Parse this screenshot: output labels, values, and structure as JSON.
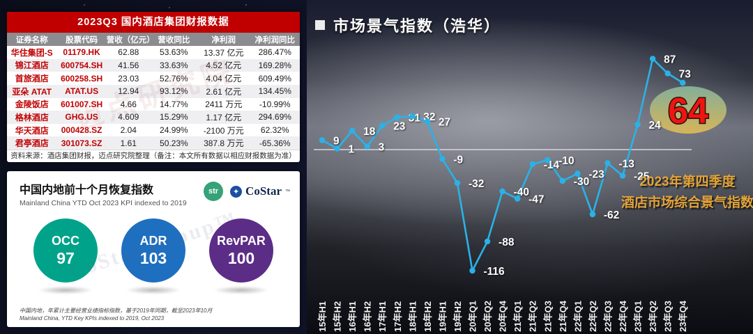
{
  "finance_table": {
    "title": "2023Q3 国内酒店集团财报数据",
    "title_bar_color": "#c00000",
    "header_bg_color": "#8b8b90",
    "name_text_color": "#c00000",
    "columns": [
      "证券名称",
      "股票代码",
      "营收（亿元）",
      "营收同比",
      "净利润",
      "净利润同比"
    ],
    "rows": [
      [
        "华住集团-S",
        "01179.HK",
        "62.88",
        "53.63%",
        "13.37 亿元",
        "286.47%"
      ],
      [
        "锦江酒店",
        "600754.SH",
        "41.56",
        "33.63%",
        "4.52 亿元",
        "169.28%"
      ],
      [
        "首旅酒店",
        "600258.SH",
        "23.03",
        "52.76%",
        "4.04 亿元",
        "609.49%"
      ],
      [
        "亚朵 ATAT",
        "ATAT.US",
        "12.94",
        "93.12%",
        "2.61 亿元",
        "134.45%"
      ],
      [
        "金陵饭店",
        "601007.SH",
        "4.66",
        "14.77%",
        "2411 万元",
        "-10.99%"
      ],
      [
        "格林酒店",
        "GHG.US",
        "4.609",
        "15.29%",
        "1.17 亿元",
        "294.69%"
      ],
      [
        "华天酒店",
        "000428.SZ",
        "2.04",
        "24.99%",
        "-2100 万元",
        "62.32%"
      ],
      [
        "君亭酒店",
        "301073.SZ",
        "1.61",
        "50.23%",
        "387.8 万元",
        "-65.36%"
      ]
    ],
    "source_note": "资料来源：酒店集团财报，迈点研究院整理（备注：本文所有数据以相应财报数据为准）",
    "watermark": "迈点研究院"
  },
  "recovery_panel": {
    "title": "中国内地前十个月恢复指数",
    "subtitle": "Mainland China YTD Oct 2023 KPI indexed to 2019",
    "logos": {
      "str": "str",
      "costar": "CoStar",
      "tm": "™"
    },
    "metrics": [
      {
        "label": "OCC",
        "value": "97",
        "color": "#00a38a"
      },
      {
        "label": "ADR",
        "value": "103",
        "color": "#1f6fc0"
      },
      {
        "label": "RevPAR",
        "value": "100",
        "color": "#5c2d87"
      }
    ],
    "footnote_cn": "中国内地，年累计主要经营业绩指标指数，基于2019年同期，截至2023年10月",
    "footnote_en": "Mainland China, YTD Key KPIs indexed to 2019, Oct 2023",
    "watermark": "CoStar Group™"
  },
  "chart_data": {
    "type": "line",
    "title": "市场景气指数（浩华）",
    "title_bullet": "■",
    "categories": [
      "15年H1",
      "15年H2",
      "16年H1",
      "16年H2",
      "17年H1",
      "17年H2",
      "18年H1",
      "18年H2",
      "19年H1",
      "19年H2",
      "20年Q1",
      "20年Q2",
      "20年Q4",
      "21年Q1",
      "21年Q2",
      "21年Q3",
      "21年Q4",
      "22年Q1",
      "22年Q2",
      "22年Q3",
      "22年Q4",
      "23年Q1",
      "23年Q2",
      "23年Q3",
      "23年Q4"
    ],
    "values": [
      9,
      1,
      18,
      3,
      23,
      31,
      32,
      27,
      -9,
      -32,
      -116,
      -88,
      -40,
      -47,
      -14,
      -10,
      -30,
      -23,
      -62,
      -13,
      -25,
      24,
      87,
      73,
      64
    ],
    "ylim": [
      -130,
      100
    ],
    "grid": "off",
    "legend": "none",
    "line_color": "#2ab2e8",
    "marker_color": "#2ab2e8",
    "label_color": "#ffffff",
    "zero_line_color": "#d6d8da",
    "highlight": {
      "category": "23年Q4",
      "value": 64,
      "text_color": "#ee1511",
      "badge_top_color": "#86b39b",
      "badge_bottom_color": "#dcb857"
    },
    "annotation": {
      "line1": "2023年第四季度",
      "line2": "酒店市场综合景气指数",
      "color": "#e2a33a"
    }
  }
}
